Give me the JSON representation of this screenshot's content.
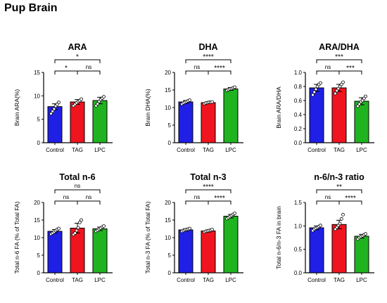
{
  "page_title": "Pup Brain",
  "colors": {
    "Control": "#1f1fe6",
    "TAG": "#f0141e",
    "LPC": "#1fb41f"
  },
  "chart_data": [
    {
      "type": "bar",
      "title": "ARA",
      "ylabel": "Brain ARA(%)",
      "ylim": [
        0,
        15
      ],
      "yticks": [
        "0",
        "5",
        "10",
        "15"
      ],
      "categories": [
        "Control",
        "TAG",
        "LPC"
      ],
      "values": [
        7.7,
        8.7,
        9.0
      ],
      "errors": [
        0.6,
        0.5,
        0.7
      ],
      "points": [
        [
          6.2,
          6.7,
          7.2,
          7.8,
          8.2,
          8.6
        ],
        [
          7.9,
          8.2,
          8.5,
          8.8,
          9.0,
          9.3
        ],
        [
          7.9,
          8.3,
          8.8,
          9.2,
          9.5,
          9.8
        ]
      ],
      "significance": [
        {
          "pair": [
            0,
            1
          ],
          "label": "*",
          "level": 0
        },
        {
          "pair": [
            1,
            2
          ],
          "label": "ns",
          "level": 0
        },
        {
          "pair": [
            0,
            2
          ],
          "label": "*",
          "level": 1
        }
      ]
    },
    {
      "type": "bar",
      "title": "DHA",
      "ylabel": "Brain DHA(%)",
      "ylim": [
        0,
        20
      ],
      "yticks": [
        "0",
        "5",
        "10",
        "15",
        "20"
      ],
      "categories": [
        "Control",
        "TAG",
        "LPC"
      ],
      "values": [
        11.6,
        11.4,
        15.3
      ],
      "errors": [
        0.4,
        0.2,
        0.4
      ],
      "points": [
        [
          11.0,
          11.3,
          11.5,
          11.7,
          11.9,
          12.1
        ],
        [
          11.1,
          11.3,
          11.4,
          11.5,
          11.5,
          11.6
        ],
        [
          14.9,
          15.1,
          15.3,
          15.4,
          15.6,
          15.8
        ]
      ],
      "significance": [
        {
          "pair": [
            0,
            1
          ],
          "label": "ns",
          "level": 0
        },
        {
          "pair": [
            1,
            2
          ],
          "label": "****",
          "level": 0
        },
        {
          "pair": [
            0,
            2
          ],
          "label": "****",
          "level": 1
        }
      ]
    },
    {
      "type": "bar",
      "title": "ARA/DHA",
      "ylabel": "Brain ARA/DHA",
      "ylim": [
        0,
        1.0
      ],
      "yticks": [
        "0.0",
        "0.2",
        "0.4",
        "0.6",
        "0.8",
        "1.0"
      ],
      "categories": [
        "Control",
        "TAG",
        "LPC"
      ],
      "values": [
        0.78,
        0.78,
        0.59
      ],
      "errors": [
        0.05,
        0.05,
        0.05
      ],
      "points": [
        [
          0.68,
          0.72,
          0.76,
          0.8,
          0.83,
          0.85
        ],
        [
          0.7,
          0.74,
          0.77,
          0.8,
          0.83,
          0.86
        ],
        [
          0.52,
          0.55,
          0.58,
          0.6,
          0.63,
          0.66
        ]
      ],
      "significance": [
        {
          "pair": [
            0,
            1
          ],
          "label": "ns",
          "level": 0
        },
        {
          "pair": [
            1,
            2
          ],
          "label": "***",
          "level": 0
        },
        {
          "pair": [
            0,
            2
          ],
          "label": "***",
          "level": 1
        }
      ]
    },
    {
      "type": "bar",
      "title": "Total n-6",
      "ylabel": "Total n-6 FA (% of Total FA)",
      "ylim": [
        0,
        20
      ],
      "yticks": [
        "0",
        "5",
        "10",
        "15",
        "20"
      ],
      "categories": [
        "Control",
        "TAG",
        "LPC"
      ],
      "values": [
        11.8,
        12.7,
        12.5
      ],
      "errors": [
        0.5,
        1.4,
        0.5
      ],
      "points": [
        [
          11.0,
          11.3,
          11.6,
          12.0,
          12.3,
          12.6
        ],
        [
          10.9,
          11.3,
          12.0,
          12.8,
          14.3,
          15.0
        ],
        [
          11.8,
          12.1,
          12.4,
          12.7,
          13.0,
          13.3
        ]
      ],
      "significance": [
        {
          "pair": [
            0,
            1
          ],
          "label": "ns",
          "level": 0
        },
        {
          "pair": [
            1,
            2
          ],
          "label": "ns",
          "level": 0
        },
        {
          "pair": [
            0,
            2
          ],
          "label": "ns",
          "level": 1
        }
      ]
    },
    {
      "type": "bar",
      "title": "Total n-3",
      "ylabel": "Total n-3 FA (% of Total FA)",
      "ylim": [
        0,
        20
      ],
      "yticks": [
        "0",
        "5",
        "10",
        "15",
        "20"
      ],
      "categories": [
        "Control",
        "TAG",
        "LPC"
      ],
      "values": [
        12.2,
        11.9,
        16.1
      ],
      "errors": [
        0.3,
        0.3,
        0.5
      ],
      "points": [
        [
          11.8,
          12.0,
          12.2,
          12.3,
          12.4,
          12.6
        ],
        [
          11.6,
          11.8,
          11.9,
          12.0,
          12.1,
          12.3
        ],
        [
          15.4,
          15.7,
          16.0,
          16.3,
          16.6,
          16.9
        ]
      ],
      "significance": [
        {
          "pair": [
            0,
            1
          ],
          "label": "ns",
          "level": 0
        },
        {
          "pair": [
            1,
            2
          ],
          "label": "****",
          "level": 0
        },
        {
          "pair": [
            0,
            2
          ],
          "label": "****",
          "level": 1
        }
      ]
    },
    {
      "type": "bar",
      "title": "n-6/n-3 ratio",
      "ylabel": "Total n-6/n-3 FA in brain",
      "ylim": [
        0,
        1.5
      ],
      "yticks": [
        "0.0",
        "0.5",
        "1.0",
        "1.5"
      ],
      "categories": [
        "Control",
        "TAG",
        "LPC"
      ],
      "values": [
        0.96,
        1.03,
        0.78
      ],
      "errors": [
        0.04,
        0.09,
        0.04
      ],
      "points": [
        [
          0.9,
          0.93,
          0.95,
          0.97,
          0.99,
          1.01
        ],
        [
          0.93,
          0.97,
          1.01,
          1.05,
          1.15,
          1.24
        ],
        [
          0.72,
          0.75,
          0.77,
          0.79,
          0.81,
          0.83
        ]
      ],
      "significance": [
        {
          "pair": [
            0,
            1
          ],
          "label": "ns",
          "level": 0
        },
        {
          "pair": [
            1,
            2
          ],
          "label": "****",
          "level": 0
        },
        {
          "pair": [
            0,
            2
          ],
          "label": "**",
          "level": 1
        }
      ]
    }
  ]
}
